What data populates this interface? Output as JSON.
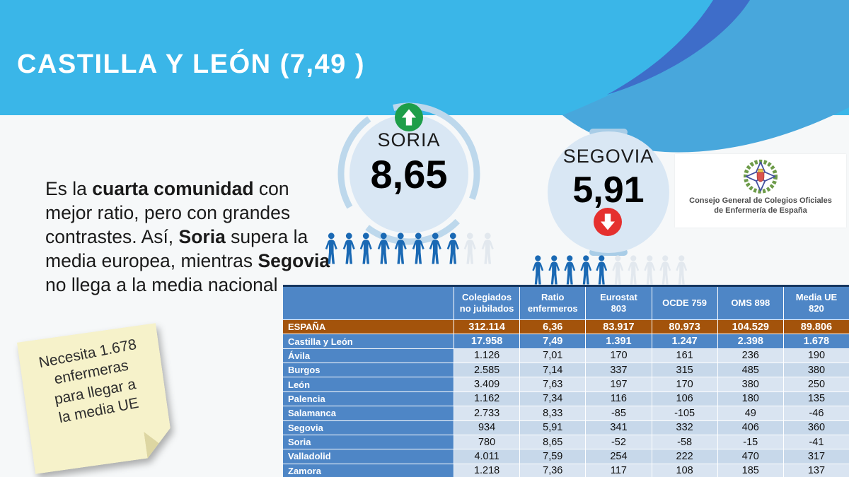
{
  "title": "CASTILLA Y LEÓN (7,49 )",
  "intro": [
    [
      {
        "t": "Es la ",
        "b": 0
      },
      {
        "t": "cuarta comunidad",
        "b": 1
      },
      {
        "t": " con",
        "b": 0
      }
    ],
    [
      {
        "t": "mejor ratio, pero con grandes",
        "b": 0
      }
    ],
    [
      {
        "t": "contrastes. Así, ",
        "b": 0
      },
      {
        "t": "Soria",
        "b": 1
      },
      {
        "t": " supera la",
        "b": 0
      }
    ],
    [
      {
        "t": "media europea, mientras ",
        "b": 0
      },
      {
        "t": "Segovia",
        "b": 1
      }
    ],
    [
      {
        "t": "no llega a la media nacional",
        "b": 0
      }
    ]
  ],
  "kpi": [
    {
      "name": "SORIA",
      "value": "8,65",
      "trend": "up",
      "icon": "up-arrow-icon"
    },
    {
      "name": "SEGOVIA",
      "value": "5,91",
      "trend": "down",
      "icon": "down-arrow-icon"
    }
  ],
  "pictograms": [
    {
      "region": "Soria",
      "filled": 8,
      "total": 10
    },
    {
      "region": "Segovia",
      "filled": 5,
      "total": 10
    }
  ],
  "sticky_note": "Necesita 1.678\nenfermeras\npara llegar a\nla media UE",
  "logo": {
    "line1": "Consejo General de Colegios Oficiales",
    "line2": "de Enfermería de España"
  },
  "table": {
    "columns": [
      "",
      "Colegiados\nno jubilados",
      "Ratio\nenfermeros",
      "Eurostat\n803",
      "OCDE 759",
      "OMS 898",
      "Media UE\n820"
    ],
    "rows": [
      {
        "label": "ESPAÑA",
        "values": [
          "312.114",
          "6,36",
          "83.917",
          "80.973",
          "104.529",
          "89.806"
        ],
        "style": "espana"
      },
      {
        "label": "Castilla y León",
        "values": [
          "17.958",
          "7,49",
          "1.391",
          "1.247",
          "2.398",
          "1.678"
        ],
        "style": "region"
      },
      {
        "label": "Ávila",
        "values": [
          "1.126",
          "7,01",
          "170",
          "161",
          "236",
          "190"
        ],
        "style": "light"
      },
      {
        "label": "Burgos",
        "values": [
          "2.585",
          "7,14",
          "337",
          "315",
          "485",
          "380"
        ],
        "style": "dark"
      },
      {
        "label": "León",
        "values": [
          "3.409",
          "7,63",
          "197",
          "170",
          "380",
          "250"
        ],
        "style": "light"
      },
      {
        "label": "Palencia",
        "values": [
          "1.162",
          "7,34",
          "116",
          "106",
          "180",
          "135"
        ],
        "style": "dark"
      },
      {
        "label": "Salamanca",
        "values": [
          "2.733",
          "8,33",
          "-85",
          "-105",
          "49",
          "-46"
        ],
        "style": "light"
      },
      {
        "label": "Segovia",
        "values": [
          "934",
          "5,91",
          "341",
          "332",
          "406",
          "360"
        ],
        "style": "dark"
      },
      {
        "label": "Soria",
        "values": [
          "780",
          "8,65",
          "-52",
          "-58",
          "-15",
          "-41"
        ],
        "style": "light"
      },
      {
        "label": "Valladolid",
        "values": [
          "4.011",
          "7,59",
          "254",
          "222",
          "470",
          "317"
        ],
        "style": "dark"
      },
      {
        "label": "Zamora",
        "values": [
          "1.218",
          "7,36",
          "117",
          "108",
          "185",
          "137"
        ],
        "style": "light"
      }
    ]
  },
  "colors": {
    "banner": "#3ab6e8",
    "swoosh_ribbon": "#3e6dc9",
    "swoosh_bulge": "#48a7dc",
    "table_header_blue": "#4e86c6",
    "espana_row_brown": "#a3530b",
    "row_light": "#d9e4f1",
    "row_dark": "#c7d8ea",
    "circle_fill": "#d9e7f4",
    "trend_up_green": "#1e9e49",
    "trend_down_red": "#e5302e",
    "person_filled": "#1a69b4",
    "person_empty": "#e2e8ee",
    "note_bg": "#f6f2ca"
  }
}
